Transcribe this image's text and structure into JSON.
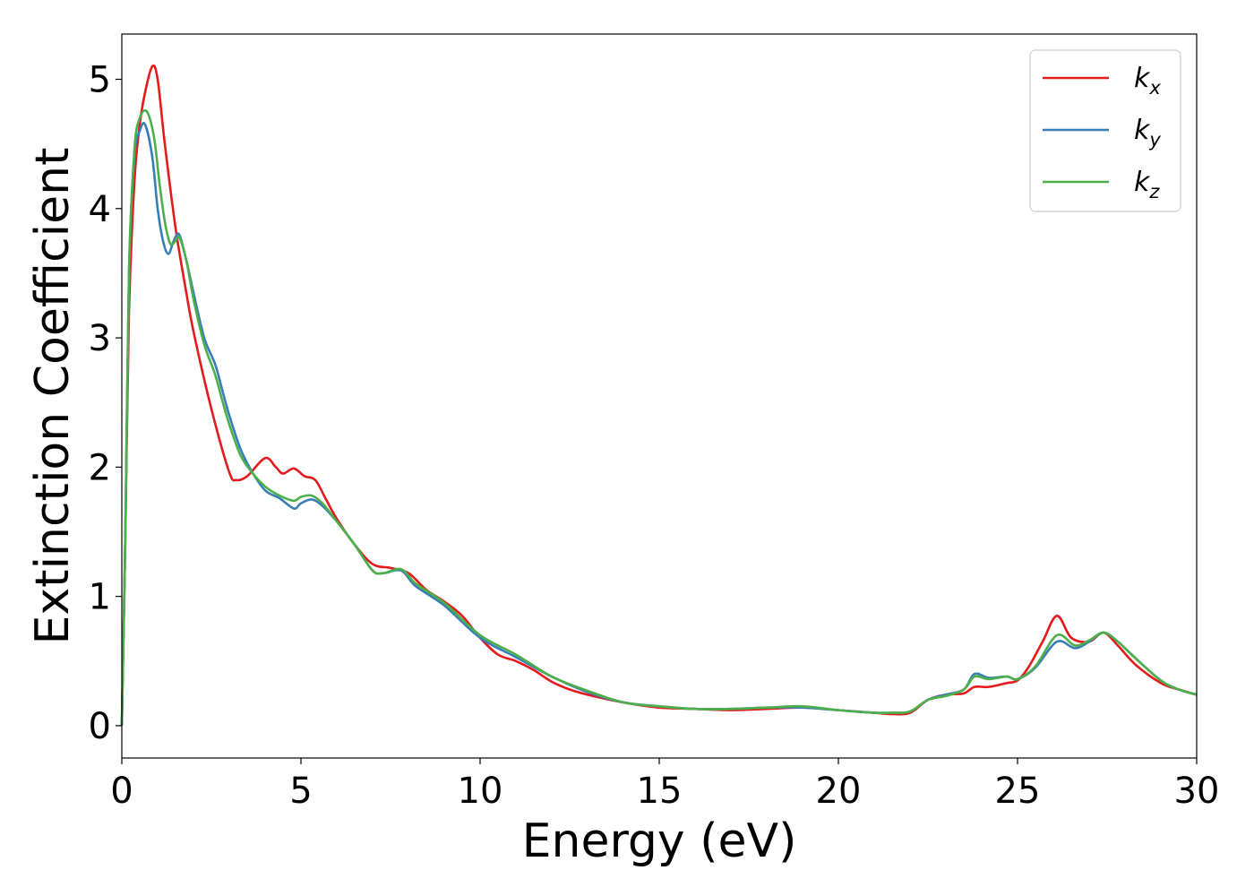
{
  "chart_data": {
    "type": "line",
    "title": "",
    "xlabel": "Energy (eV)",
    "ylabel": "Extinction Coefficient",
    "xlim": [
      0,
      30
    ],
    "ylim": [
      -0.25,
      5.35
    ],
    "grid": false,
    "legend_position": "top-right",
    "x_ticks": [
      0,
      5,
      10,
      15,
      20,
      25,
      30
    ],
    "y_ticks": [
      0,
      1,
      2,
      3,
      4,
      5
    ],
    "x_tick_labels": [
      "0",
      "5",
      "10",
      "15",
      "20",
      "25",
      "30"
    ],
    "y_tick_labels": [
      "0",
      "1",
      "2",
      "3",
      "4",
      "5"
    ],
    "series": [
      {
        "name": "k_x",
        "legend_base": "k",
        "legend_sub": "x",
        "color": "#e41a1c",
        "x": [
          0,
          0.1,
          0.2,
          0.35,
          0.5,
          0.65,
          0.85,
          1.0,
          1.2,
          1.5,
          1.8,
          2.0,
          2.5,
          3.0,
          3.2,
          3.5,
          4.0,
          4.3,
          4.5,
          4.8,
          5.1,
          5.4,
          5.7,
          6.0,
          6.5,
          7.0,
          7.5,
          8.0,
          8.5,
          9.0,
          9.5,
          10.0,
          10.5,
          11.0,
          11.5,
          12.0,
          12.5,
          13.0,
          14.0,
          15.0,
          16.0,
          17.0,
          18.0,
          19.0,
          20.0,
          21.0,
          21.5,
          22.0,
          22.5,
          23.0,
          23.5,
          23.8,
          24.2,
          24.7,
          25.0,
          25.3,
          25.7,
          26.1,
          26.5,
          27.0,
          27.4,
          27.8,
          28.3,
          29.0,
          29.5,
          30.0
        ],
        "values": [
          0.0,
          1.5,
          3.2,
          4.2,
          4.65,
          4.9,
          5.1,
          5.0,
          4.5,
          3.85,
          3.35,
          3.05,
          2.45,
          1.96,
          1.9,
          1.93,
          2.07,
          2.0,
          1.95,
          1.99,
          1.93,
          1.9,
          1.75,
          1.6,
          1.4,
          1.25,
          1.22,
          1.18,
          1.05,
          0.96,
          0.85,
          0.68,
          0.55,
          0.5,
          0.43,
          0.34,
          0.28,
          0.24,
          0.18,
          0.14,
          0.13,
          0.12,
          0.13,
          0.14,
          0.12,
          0.1,
          0.09,
          0.1,
          0.2,
          0.24,
          0.25,
          0.3,
          0.3,
          0.33,
          0.35,
          0.45,
          0.65,
          0.85,
          0.68,
          0.65,
          0.72,
          0.62,
          0.47,
          0.33,
          0.28,
          0.24
        ]
      },
      {
        "name": "k_y",
        "legend_base": "k",
        "legend_sub": "y",
        "color": "#377eb8",
        "x": [
          0,
          0.1,
          0.2,
          0.35,
          0.5,
          0.65,
          0.85,
          1.0,
          1.15,
          1.3,
          1.45,
          1.6,
          1.8,
          2.0,
          2.3,
          2.6,
          2.8,
          3.0,
          3.3,
          3.6,
          4.0,
          4.4,
          4.8,
          5.0,
          5.3,
          5.6,
          6.0,
          6.5,
          7.0,
          7.3,
          7.8,
          8.2,
          9.0,
          10.0,
          11.0,
          12.0,
          13.0,
          14.0,
          15.0,
          16.0,
          17.0,
          18.0,
          19.0,
          20.0,
          21.0,
          21.5,
          22.0,
          22.5,
          23.0,
          23.5,
          23.8,
          24.2,
          24.7,
          25.0,
          25.5,
          26.1,
          26.6,
          27.0,
          27.4,
          27.8,
          28.3,
          29.0,
          29.5,
          30.0
        ],
        "values": [
          0.0,
          1.5,
          3.5,
          4.4,
          4.6,
          4.65,
          4.4,
          4.0,
          3.75,
          3.65,
          3.75,
          3.8,
          3.6,
          3.35,
          3.0,
          2.8,
          2.6,
          2.4,
          2.15,
          1.98,
          1.82,
          1.76,
          1.68,
          1.72,
          1.75,
          1.7,
          1.58,
          1.4,
          1.2,
          1.18,
          1.2,
          1.08,
          0.93,
          0.68,
          0.53,
          0.38,
          0.26,
          0.18,
          0.15,
          0.13,
          0.13,
          0.14,
          0.14,
          0.12,
          0.1,
          0.1,
          0.11,
          0.2,
          0.24,
          0.28,
          0.4,
          0.37,
          0.38,
          0.36,
          0.45,
          0.65,
          0.6,
          0.65,
          0.72,
          0.65,
          0.52,
          0.35,
          0.28,
          0.24
        ]
      },
      {
        "name": "k_z",
        "legend_base": "k",
        "legend_sub": "z",
        "color": "#4daf4a",
        "x": [
          0,
          0.1,
          0.2,
          0.35,
          0.5,
          0.7,
          0.9,
          1.05,
          1.2,
          1.35,
          1.5,
          1.6,
          1.8,
          2.0,
          2.3,
          2.6,
          2.8,
          3.0,
          3.3,
          3.6,
          4.0,
          4.4,
          4.8,
          5.0,
          5.3,
          5.6,
          6.0,
          6.5,
          7.0,
          7.3,
          7.8,
          8.2,
          9.0,
          10.0,
          11.0,
          12.0,
          13.0,
          14.0,
          15.0,
          16.0,
          17.0,
          18.0,
          19.0,
          20.0,
          21.0,
          21.5,
          22.0,
          22.5,
          23.0,
          23.5,
          23.8,
          24.2,
          24.7,
          25.0,
          25.5,
          26.1,
          26.6,
          27.0,
          27.4,
          27.8,
          28.3,
          29.0,
          29.5,
          30.0
        ],
        "values": [
          0.0,
          1.5,
          3.5,
          4.45,
          4.7,
          4.75,
          4.55,
          4.2,
          3.9,
          3.73,
          3.75,
          3.78,
          3.6,
          3.3,
          2.95,
          2.72,
          2.52,
          2.33,
          2.1,
          1.97,
          1.85,
          1.78,
          1.74,
          1.77,
          1.78,
          1.72,
          1.58,
          1.4,
          1.2,
          1.18,
          1.21,
          1.1,
          0.95,
          0.7,
          0.55,
          0.38,
          0.27,
          0.18,
          0.15,
          0.13,
          0.13,
          0.14,
          0.15,
          0.12,
          0.1,
          0.1,
          0.11,
          0.2,
          0.23,
          0.28,
          0.38,
          0.36,
          0.38,
          0.36,
          0.46,
          0.7,
          0.62,
          0.66,
          0.72,
          0.65,
          0.52,
          0.35,
          0.28,
          0.24
        ]
      }
    ]
  }
}
